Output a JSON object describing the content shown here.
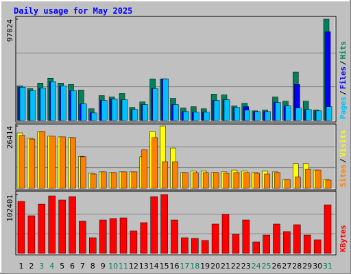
{
  "title": "Daily usage for May 2025",
  "chart_data": [
    {
      "type": "bar",
      "ylim": [
        0,
        97024
      ],
      "yticks": [
        97024
      ],
      "legend_separator": "/",
      "series": [
        {
          "name": "Hits",
          "color": "#00805C",
          "values": [
            33200,
            30600,
            35900,
            40500,
            35900,
            34600,
            29200,
            11300,
            23900,
            22600,
            25900,
            12600,
            17900,
            39900,
            39900,
            21300,
            12000,
            13300,
            11300,
            25300,
            24600,
            14000,
            16600,
            9300,
            10000,
            22600,
            18600,
            46500,
            18600,
            10000,
            97024
          ]
        },
        {
          "name": "Files",
          "color": "#0000FF",
          "values": [
            31900,
            28600,
            31200,
            37200,
            33200,
            28600,
            15900,
            7300,
            19300,
            20600,
            19900,
            10600,
            15300,
            30600,
            39900,
            15300,
            8600,
            8000,
            8000,
            19300,
            19900,
            12600,
            13300,
            8600,
            8600,
            17300,
            14000,
            34600,
            10600,
            9300,
            85100
          ]
        },
        {
          "name": "Pages",
          "color": "#00C0FF",
          "values": [
            31900,
            28600,
            31200,
            37200,
            33200,
            28600,
            15900,
            7300,
            19300,
            20600,
            19900,
            10600,
            15300,
            30600,
            39900,
            15300,
            8600,
            8000,
            8000,
            19300,
            19900,
            12600,
            10000,
            8600,
            8600,
            17300,
            14000,
            12000,
            10600,
            9300,
            13300
          ]
        }
      ]
    },
    {
      "type": "bar",
      "ylim": [
        0,
        26414
      ],
      "yticks": [
        26414
      ],
      "legend_separator": "/",
      "series": [
        {
          "name": "Visits",
          "color": "#FFFF00",
          "values": [
            23500,
            21200,
            24100,
            22100,
            21800,
            21500,
            13600,
            6400,
            7000,
            6700,
            7000,
            7000,
            13400,
            24100,
            26414,
            17100,
            6700,
            7300,
            7300,
            6700,
            7000,
            7800,
            7300,
            6700,
            7300,
            7000,
            3800,
            10500,
            10500,
            7800,
            3800
          ]
        },
        {
          "name": "Sites",
          "color": "#FF8000",
          "values": [
            22400,
            20900,
            24100,
            22100,
            21800,
            21500,
            13400,
            6100,
            7000,
            6700,
            7000,
            7000,
            16300,
            21500,
            11300,
            11300,
            6700,
            6700,
            6700,
            6700,
            6400,
            6700,
            6700,
            6400,
            6100,
            6700,
            3800,
            4900,
            8100,
            7800,
            3500
          ]
        }
      ]
    },
    {
      "type": "bar",
      "ylim": [
        0,
        102401
      ],
      "yticks": [
        102401
      ],
      "categories": [
        "1",
        "2",
        "3",
        "4",
        "5",
        "6",
        "7",
        "8",
        "9",
        "10",
        "11",
        "12",
        "13",
        "14",
        "15",
        "16",
        "17",
        "18",
        "19",
        "20",
        "21",
        "22",
        "23",
        "24",
        "25",
        "26",
        "27",
        "28",
        "29",
        "30",
        "31"
      ],
      "category_colors": [
        "#000000",
        "#000000",
        "#00805C",
        "#00805C",
        "#000000",
        "#000000",
        "#000000",
        "#000000",
        "#000000",
        "#00805C",
        "#00805C",
        "#000000",
        "#000000",
        "#000000",
        "#000000",
        "#000000",
        "#00805C",
        "#00805C",
        "#000000",
        "#000000",
        "#000000",
        "#000000",
        "#000000",
        "#00805C",
        "#00805C",
        "#000000",
        "#000000",
        "#000000",
        "#000000",
        "#000000",
        "#00805C"
      ],
      "series": [
        {
          "name": "KBytes",
          "color": "#FF0000",
          "values": [
            90500,
            65500,
            85700,
            100000,
            92900,
            98800,
            56000,
            27400,
            58300,
            60700,
            61900,
            39300,
            53600,
            98800,
            102401,
            58300,
            27400,
            26200,
            22600,
            51200,
            67900,
            33300,
            58300,
            20200,
            32100,
            51200,
            38100,
            50000,
            32100,
            23800,
            84500
          ]
        }
      ]
    }
  ]
}
